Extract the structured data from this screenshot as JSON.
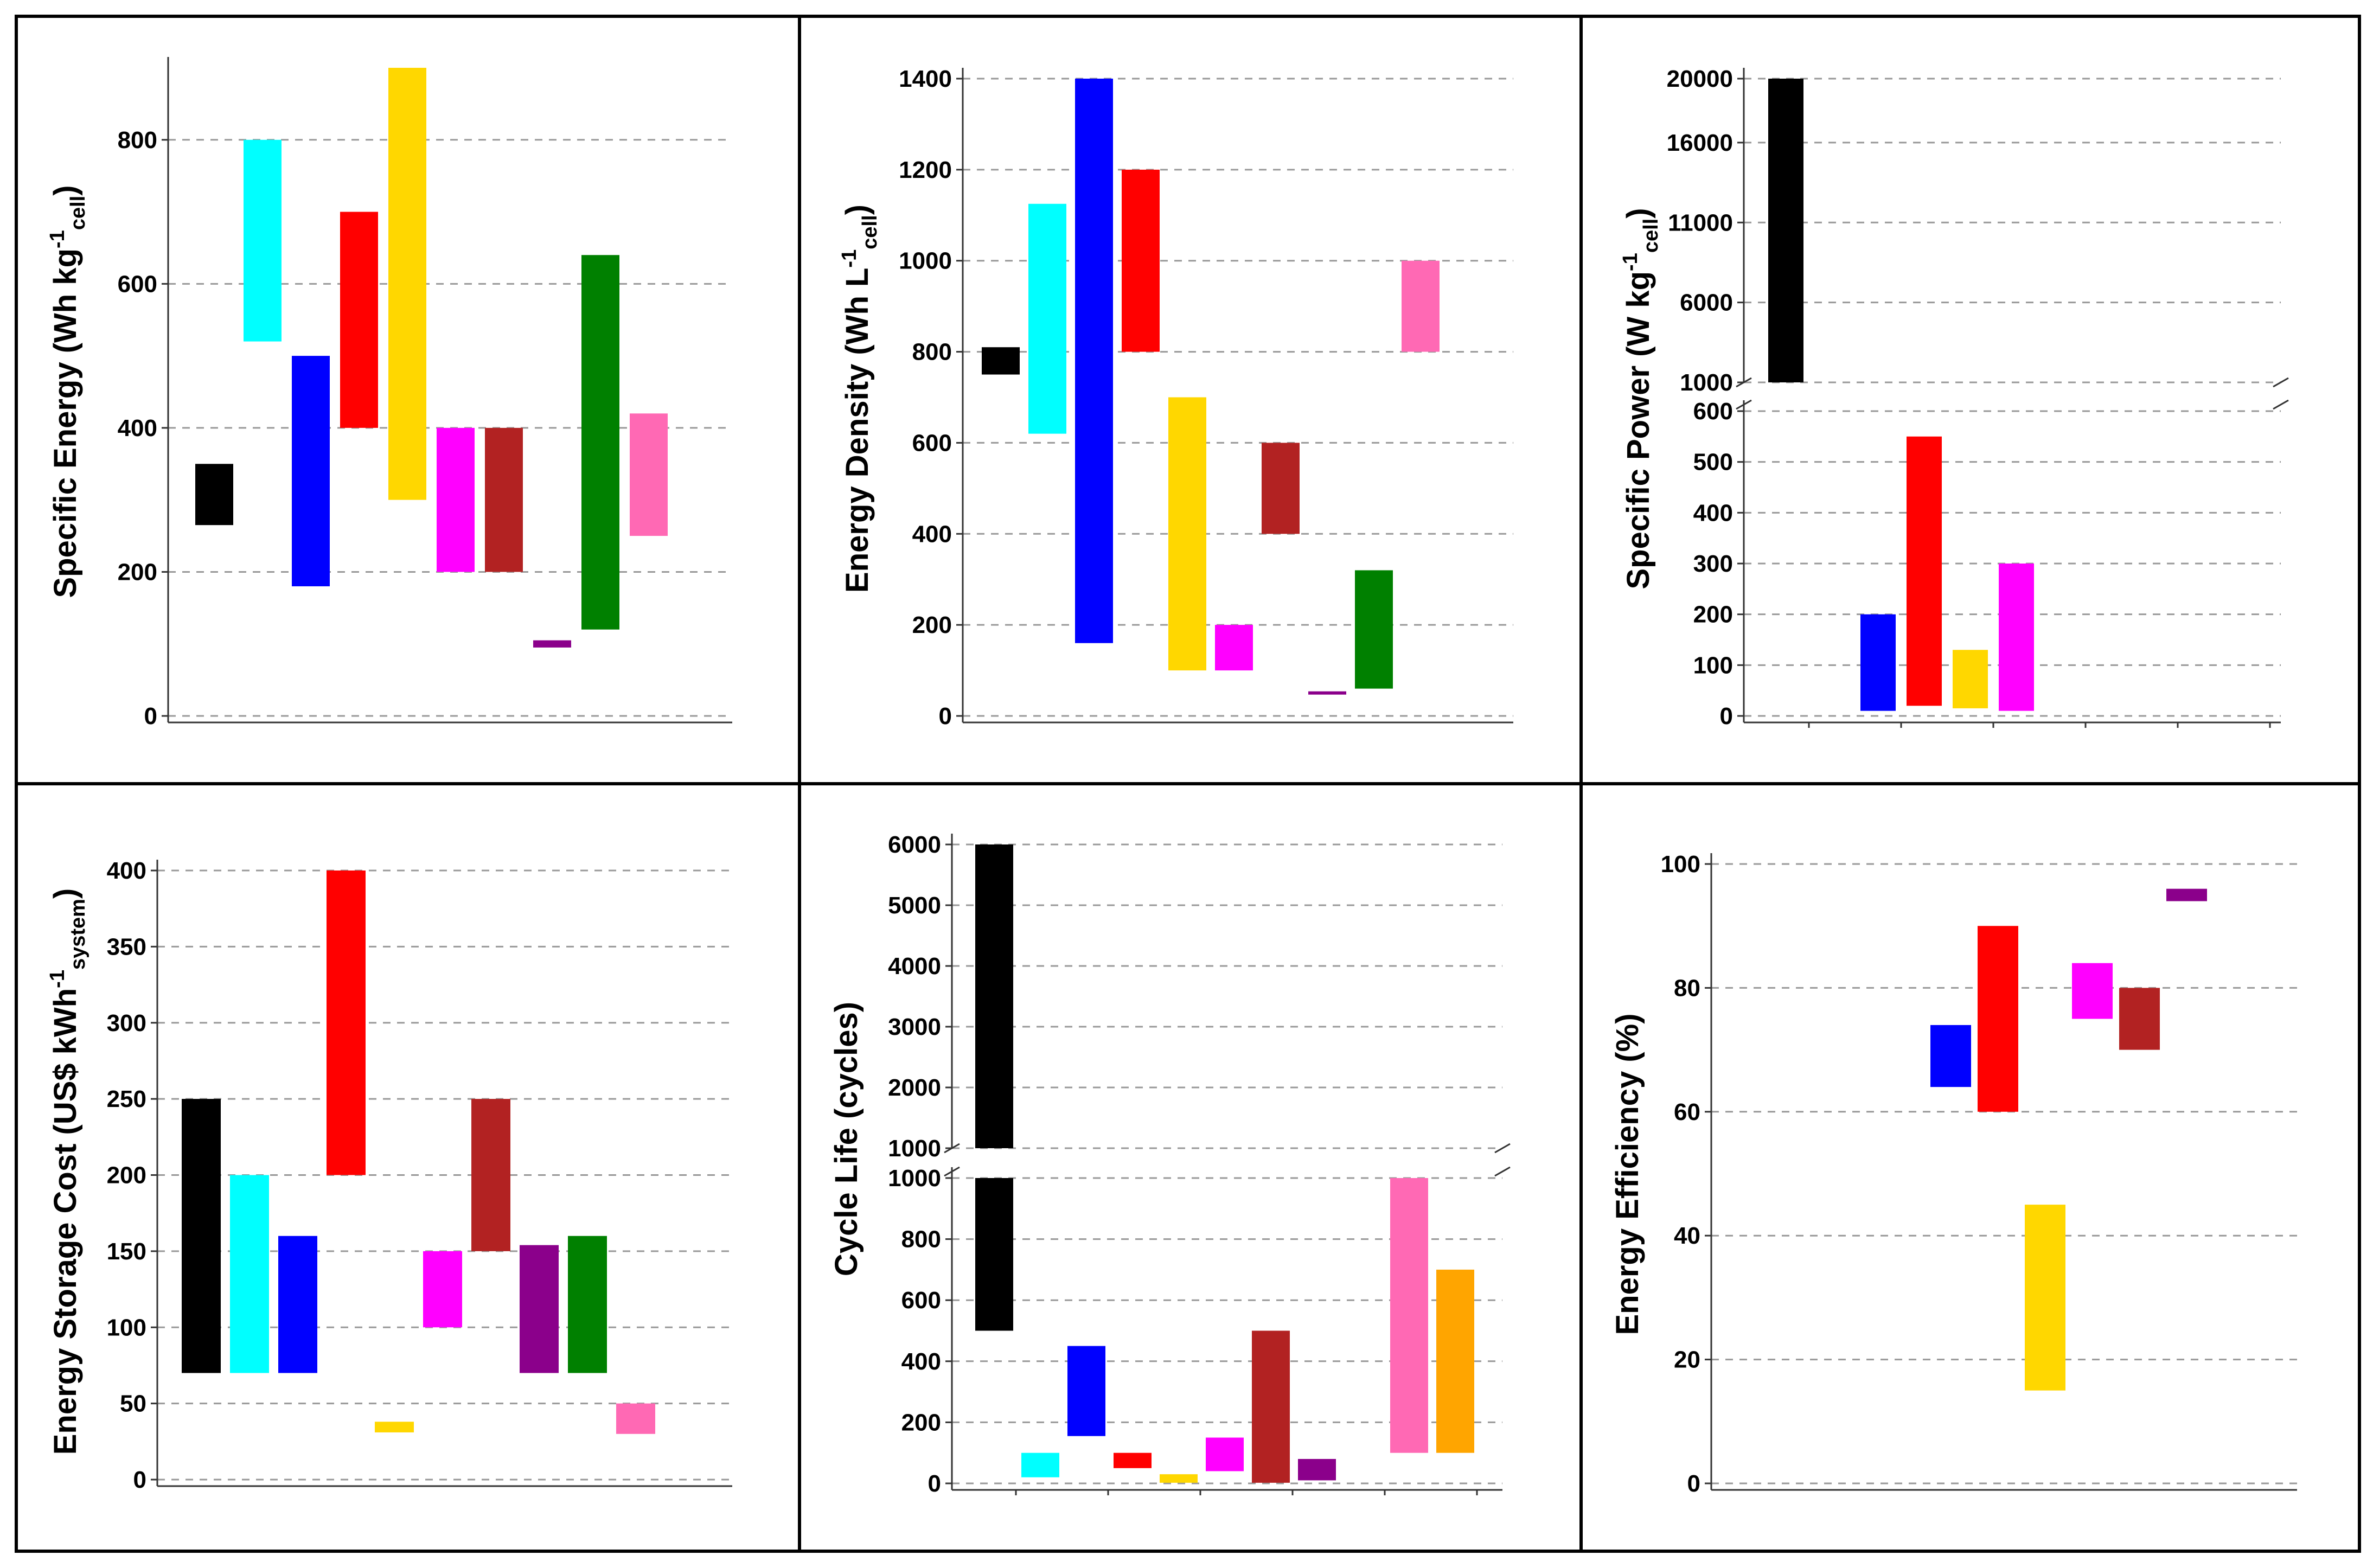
{
  "chart_data": [
    {
      "type": "bar",
      "subtype": "floating-range",
      "title": "",
      "ylabel": {
        "main": "Specific Energy (Wh kg",
        "sup": "-1",
        "sub": "cell",
        "end": ")"
      },
      "ylim": [
        0,
        900
      ],
      "yticks": [
        0,
        200,
        400,
        600,
        800
      ],
      "n_slots": 12,
      "ranges": [
        {
          "slot": 0,
          "low": 265,
          "high": 350,
          "color": "#000000"
        },
        {
          "slot": 1,
          "low": 520,
          "high": 800,
          "color": "#00FFFF"
        },
        {
          "slot": 2,
          "low": 180,
          "high": 500,
          "color": "#0000FF"
        },
        {
          "slot": 3,
          "low": 400,
          "high": 700,
          "color": "#FF0000"
        },
        {
          "slot": 4,
          "low": 300,
          "high": 900,
          "color": "#FFD700"
        },
        {
          "slot": 5,
          "low": 200,
          "high": 400,
          "color": "#FF00FF"
        },
        {
          "slot": 6,
          "low": 200,
          "high": 400,
          "color": "#B22222"
        },
        {
          "slot": 7,
          "low": 95,
          "high": 105,
          "color": "#8B008B"
        },
        {
          "slot": 8,
          "low": 120,
          "high": 640,
          "color": "#008000"
        },
        {
          "slot": 9,
          "low": 250,
          "high": 420,
          "color": "#FF69B4"
        }
      ]
    },
    {
      "type": "bar",
      "subtype": "floating-range",
      "title": "",
      "ylabel": {
        "main": "Energy Density (Wh L",
        "sup": "-1",
        "sub": "cell",
        "end": ")"
      },
      "ylim": [
        0,
        1400
      ],
      "yticks": [
        0,
        200,
        400,
        600,
        800,
        1000,
        1200,
        1400
      ],
      "n_slots": 12,
      "ranges": [
        {
          "slot": 0,
          "low": 750,
          "high": 810,
          "color": "#000000"
        },
        {
          "slot": 1,
          "low": 620,
          "high": 1125,
          "color": "#00FFFF"
        },
        {
          "slot": 2,
          "low": 160,
          "high": 1400,
          "color": "#0000FF"
        },
        {
          "slot": 3,
          "low": 800,
          "high": 1200,
          "color": "#FF0000"
        },
        {
          "slot": 4,
          "low": 100,
          "high": 700,
          "color": "#FFD700"
        },
        {
          "slot": 5,
          "low": 100,
          "high": 200,
          "color": "#FF00FF"
        },
        {
          "slot": 6,
          "low": 400,
          "high": 600,
          "color": "#B22222"
        },
        {
          "slot": 7,
          "low": 48,
          "high": 54,
          "color": "#8B008B"
        },
        {
          "slot": 8,
          "low": 60,
          "high": 320,
          "color": "#008000"
        },
        {
          "slot": 9,
          "low": 800,
          "high": 1000,
          "color": "#FF69B4"
        }
      ]
    },
    {
      "type": "bar",
      "subtype": "floating-range-broken-axis",
      "title": "",
      "ylabel": {
        "main": "Specific Power (W kg",
        "sup": "-1",
        "sub": "cell",
        "end": ")"
      },
      "upper": {
        "ylim": [
          1000,
          20000
        ],
        "yticks": [
          1000,
          6000,
          11000,
          16000,
          20000
        ]
      },
      "lower": {
        "ylim": [
          0,
          600
        ],
        "yticks": [
          0,
          100,
          200,
          300,
          400,
          500,
          600
        ]
      },
      "n_slots": 12,
      "ranges": [
        {
          "slot": 0,
          "low": 1000,
          "high": 20000,
          "color": "#000000",
          "segment": "upper"
        },
        {
          "slot": 2,
          "low": 10,
          "high": 200,
          "color": "#0000FF",
          "segment": "lower"
        },
        {
          "slot": 3,
          "low": 20,
          "high": 550,
          "color": "#FF0000",
          "segment": "lower"
        },
        {
          "slot": 4,
          "low": 15,
          "high": 130,
          "color": "#FFD700",
          "segment": "lower"
        },
        {
          "slot": 5,
          "low": 10,
          "high": 300,
          "color": "#FF00FF",
          "segment": "lower"
        }
      ]
    },
    {
      "type": "bar",
      "subtype": "floating-range",
      "title": "",
      "ylabel": {
        "main": "Energy Storage Cost (US$ kWh",
        "sup": "-1",
        "sub": "system",
        "end": ")"
      },
      "ylim": [
        0,
        400
      ],
      "yticks": [
        0,
        50,
        100,
        150,
        200,
        250,
        300,
        350,
        400
      ],
      "n_slots": 12,
      "ranges": [
        {
          "slot": 0,
          "low": 70,
          "high": 250,
          "color": "#000000"
        },
        {
          "slot": 1,
          "low": 70,
          "high": 200,
          "color": "#00FFFF"
        },
        {
          "slot": 2,
          "low": 70,
          "high": 160,
          "color": "#0000FF"
        },
        {
          "slot": 3,
          "low": 200,
          "high": 400,
          "color": "#FF0000"
        },
        {
          "slot": 4,
          "low": 31,
          "high": 38,
          "color": "#FFD700"
        },
        {
          "slot": 5,
          "low": 100,
          "high": 150,
          "color": "#FF00FF"
        },
        {
          "slot": 6,
          "low": 150,
          "high": 250,
          "color": "#B22222"
        },
        {
          "slot": 7,
          "low": 70,
          "high": 154,
          "color": "#8B008B"
        },
        {
          "slot": 8,
          "low": 70,
          "high": 160,
          "color": "#008000"
        },
        {
          "slot": 9,
          "low": 30,
          "high": 50,
          "color": "#FF69B4"
        }
      ]
    },
    {
      "type": "bar",
      "subtype": "floating-range-broken-axis",
      "title": "",
      "ylabel": {
        "main": "Cycle Life (cycles)",
        "sup": "",
        "sub": "",
        "end": ""
      },
      "upper": {
        "ylim": [
          1000,
          6000
        ],
        "yticks": [
          1000,
          2000,
          3000,
          4000,
          5000,
          6000
        ]
      },
      "lower": {
        "ylim": [
          0,
          1000
        ],
        "yticks": [
          0,
          200,
          400,
          600,
          800,
          1000
        ]
      },
      "n_slots": 12,
      "ranges": [
        {
          "slot": 0,
          "low": 500,
          "high": 6000,
          "color": "#000000",
          "segment": "both"
        },
        {
          "slot": 1,
          "low": 20,
          "high": 100,
          "color": "#00FFFF",
          "segment": "lower"
        },
        {
          "slot": 2,
          "low": 155,
          "high": 450,
          "color": "#0000FF",
          "segment": "lower"
        },
        {
          "slot": 3,
          "low": 50,
          "high": 100,
          "color": "#FF0000",
          "segment": "lower"
        },
        {
          "slot": 4,
          "low": 2,
          "high": 30,
          "color": "#FFD700",
          "segment": "lower"
        },
        {
          "slot": 5,
          "low": 40,
          "high": 150,
          "color": "#FF00FF",
          "segment": "lower"
        },
        {
          "slot": 6,
          "low": 2,
          "high": 500,
          "color": "#B22222",
          "segment": "lower"
        },
        {
          "slot": 7,
          "low": 10,
          "high": 80,
          "color": "#8B008B",
          "segment": "lower"
        },
        {
          "slot": 9,
          "low": 100,
          "high": 1000,
          "color": "#FF69B4",
          "segment": "lower"
        },
        {
          "slot": 10,
          "low": 100,
          "high": 700,
          "color": "#FFA500",
          "segment": "lower"
        }
      ]
    },
    {
      "type": "bar",
      "subtype": "floating-range",
      "title": "",
      "ylabel": {
        "main": "Energy Efficiency (%)",
        "sup": "",
        "sub": "",
        "end": ""
      },
      "ylim": [
        0,
        100
      ],
      "yticks": [
        0,
        20,
        40,
        60,
        80,
        100
      ],
      "n_slots": 12,
      "ranges": [
        {
          "slot": 2,
          "low": 64,
          "high": 74,
          "color": "#0000FF"
        },
        {
          "slot": 3,
          "low": 60,
          "high": 90,
          "color": "#FF0000"
        },
        {
          "slot": 4,
          "low": 15,
          "high": 45,
          "color": "#FFD700"
        },
        {
          "slot": 5,
          "low": 75,
          "high": 84,
          "color": "#FF00FF"
        },
        {
          "slot": 6,
          "low": 70,
          "high": 80,
          "color": "#B22222"
        },
        {
          "slot": 7,
          "low": 94,
          "high": 96,
          "color": "#8B008B"
        }
      ]
    }
  ]
}
